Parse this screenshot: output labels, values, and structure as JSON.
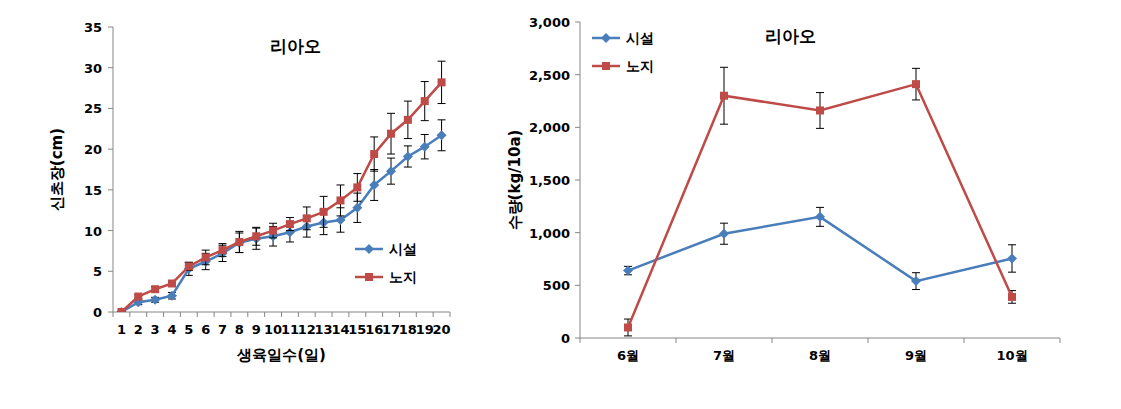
{
  "chart_data": [
    {
      "type": "line",
      "title": "리아오",
      "x_label": "생육일수(일)",
      "y_label": "신초장(cm)",
      "categories": [
        "1",
        "2",
        "3",
        "4",
        "5",
        "6",
        "7",
        "8",
        "9",
        "10",
        "11",
        "12",
        "13",
        "14",
        "15",
        "16",
        "17",
        "18",
        "19",
        "20"
      ],
      "ylim": [
        0,
        35
      ],
      "yticks": [
        0,
        5,
        10,
        15,
        20,
        25,
        30,
        35
      ],
      "grid": false,
      "legend": "lower right",
      "series": [
        {
          "name": "시설",
          "color": "#4a7ebb",
          "marker": "diamond",
          "values": [
            0,
            1.2,
            1.5,
            2.0,
            5.3,
            6.2,
            7.2,
            8.5,
            9.0,
            9.3,
            9.8,
            10.5,
            11.0,
            11.3,
            12.8,
            15.6,
            17.3,
            19.1,
            20.3,
            21.7
          ],
          "errors": [
            0,
            0.3,
            0.3,
            0.4,
            0.8,
            1.0,
            1.0,
            1.2,
            1.3,
            1.2,
            1.2,
            1.3,
            1.5,
            1.5,
            1.8,
            1.9,
            1.6,
            1.3,
            1.5,
            1.9
          ]
        },
        {
          "name": "노지",
          "color": "#be4b48",
          "marker": "square",
          "values": [
            0,
            1.9,
            2.8,
            3.5,
            5.6,
            6.7,
            7.6,
            8.6,
            9.3,
            10.0,
            10.8,
            11.5,
            12.3,
            13.7,
            15.3,
            19.4,
            21.9,
            23.6,
            25.9,
            28.2
          ],
          "errors": [
            0,
            0.2,
            0.3,
            0.3,
            0.5,
            0.9,
            0.8,
            1.3,
            1.1,
            0.9,
            0.8,
            1.4,
            1.9,
            1.9,
            1.7,
            2.1,
            2.5,
            2.3,
            2.4,
            2.6
          ]
        }
      ]
    },
    {
      "type": "line",
      "title": "리아오",
      "y_label": "수량(kg/10a)",
      "categories": [
        "6월",
        "7월",
        "8월",
        "9월",
        "10월"
      ],
      "ylim": [
        0,
        3000
      ],
      "yticks": [
        0,
        500,
        {
          "value": 1000,
          "label": "1,000"
        },
        {
          "value": 1500,
          "label": "1,500"
        },
        {
          "value": 2000,
          "label": "2,000"
        },
        {
          "value": 2500,
          "label": "2,500"
        },
        {
          "value": 3000,
          "label": "3,000"
        }
      ],
      "grid": false,
      "legend": "upper left",
      "series": [
        {
          "name": "시설",
          "color": "#4a7ebb",
          "marker": "diamond",
          "values": [
            640,
            990,
            1150,
            540,
            755
          ],
          "errors": [
            40,
            100,
            90,
            80,
            130
          ]
        },
        {
          "name": "노지",
          "color": "#be4b48",
          "marker": "square",
          "values": [
            100,
            2300,
            2160,
            2410,
            390
          ],
          "errors": [
            80,
            270,
            170,
            150,
            60
          ]
        }
      ]
    }
  ]
}
